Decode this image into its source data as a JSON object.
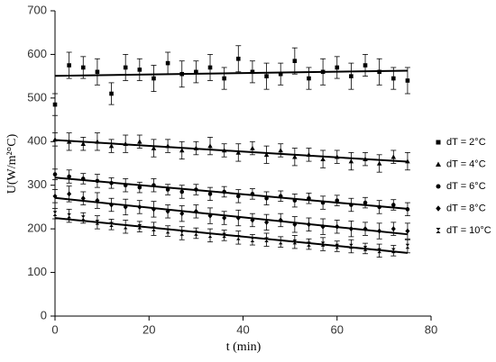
{
  "chart_data": {
    "type": "scatter",
    "x_label": "t (min)",
    "y_label": "U(W/m²°C)",
    "xlim": [
      0,
      80
    ],
    "xticks": [
      0,
      20,
      40,
      60,
      80
    ],
    "ylim": [
      0,
      700
    ],
    "yticks": [
      0,
      100,
      200,
      300,
      400,
      500,
      600,
      700
    ],
    "legend": "right",
    "trendline": true,
    "error_bars": true,
    "x": [
      0,
      3,
      6,
      9,
      12,
      15,
      18,
      21,
      24,
      27,
      30,
      33,
      36,
      39,
      42,
      45,
      48,
      51,
      54,
      57,
      60,
      63,
      66,
      69,
      72,
      75
    ],
    "series": [
      {
        "name": "dT = 2°C",
        "color": "#000000",
        "marker": "square",
        "values": [
          485,
          575,
          570,
          560,
          510,
          570,
          565,
          545,
          580,
          555,
          560,
          570,
          545,
          590,
          560,
          550,
          555,
          585,
          545,
          560,
          570,
          550,
          575,
          560,
          545,
          540
        ],
        "errors": [
          25,
          30,
          25,
          30,
          25,
          30,
          25,
          30,
          25,
          30,
          25,
          30,
          25,
          30,
          25,
          30,
          25,
          30,
          25,
          30,
          25,
          30,
          25,
          30,
          25,
          30
        ]
      },
      {
        "name": "dT = 4°C",
        "color": "#000000",
        "marker": "triangle",
        "values": [
          405,
          400,
          395,
          400,
          390,
          395,
          400,
          385,
          390,
          380,
          385,
          390,
          380,
          375,
          385,
          370,
          380,
          365,
          370,
          360,
          365,
          355,
          360,
          350,
          365,
          355
        ],
        "errors": [
          15,
          20,
          15,
          20,
          15,
          20,
          15,
          20,
          15,
          20,
          15,
          20,
          15,
          20,
          15,
          20,
          15,
          20,
          15,
          20,
          15,
          20,
          15,
          20,
          15,
          20
        ]
      },
      {
        "name": "dT = 6°C",
        "color": "#000000",
        "marker": "circle",
        "values": [
          325,
          320,
          315,
          310,
          305,
          300,
          295,
          300,
          290,
          285,
          290,
          280,
          285,
          275,
          280,
          270,
          275,
          265,
          270,
          260,
          265,
          255,
          260,
          250,
          255,
          245
        ],
        "errors": [
          12,
          15,
          12,
          15,
          12,
          15,
          12,
          15,
          12,
          15,
          12,
          15,
          12,
          15,
          12,
          15,
          12,
          15,
          12,
          15,
          12,
          15,
          12,
          15,
          12,
          15
        ]
      },
      {
        "name": "dT = 8°C",
        "color": "#000000",
        "marker": "diamond",
        "values": [
          275,
          280,
          270,
          265,
          255,
          250,
          250,
          245,
          240,
          235,
          240,
          230,
          225,
          225,
          220,
          215,
          220,
          210,
          210,
          205,
          205,
          200,
          200,
          195,
          200,
          195
        ],
        "errors": [
          15,
          18,
          15,
          18,
          15,
          18,
          15,
          18,
          15,
          18,
          15,
          18,
          15,
          18,
          15,
          18,
          15,
          18,
          15,
          18,
          15,
          18,
          15,
          18,
          15,
          18
        ]
      },
      {
        "name": "dT = 10°C",
        "color": "#000000",
        "marker": "hourglass",
        "values": [
          235,
          230,
          225,
          215,
          210,
          205,
          205,
          200,
          195,
          190,
          190,
          185,
          185,
          180,
          175,
          175,
          170,
          170,
          165,
          165,
          160,
          160,
          155,
          150,
          150,
          160
        ],
        "errors": [
          12,
          15,
          12,
          15,
          12,
          15,
          12,
          15,
          12,
          15,
          12,
          15,
          12,
          15,
          12,
          15,
          12,
          15,
          12,
          15,
          12,
          15,
          12,
          15,
          12,
          15
        ]
      }
    ]
  }
}
